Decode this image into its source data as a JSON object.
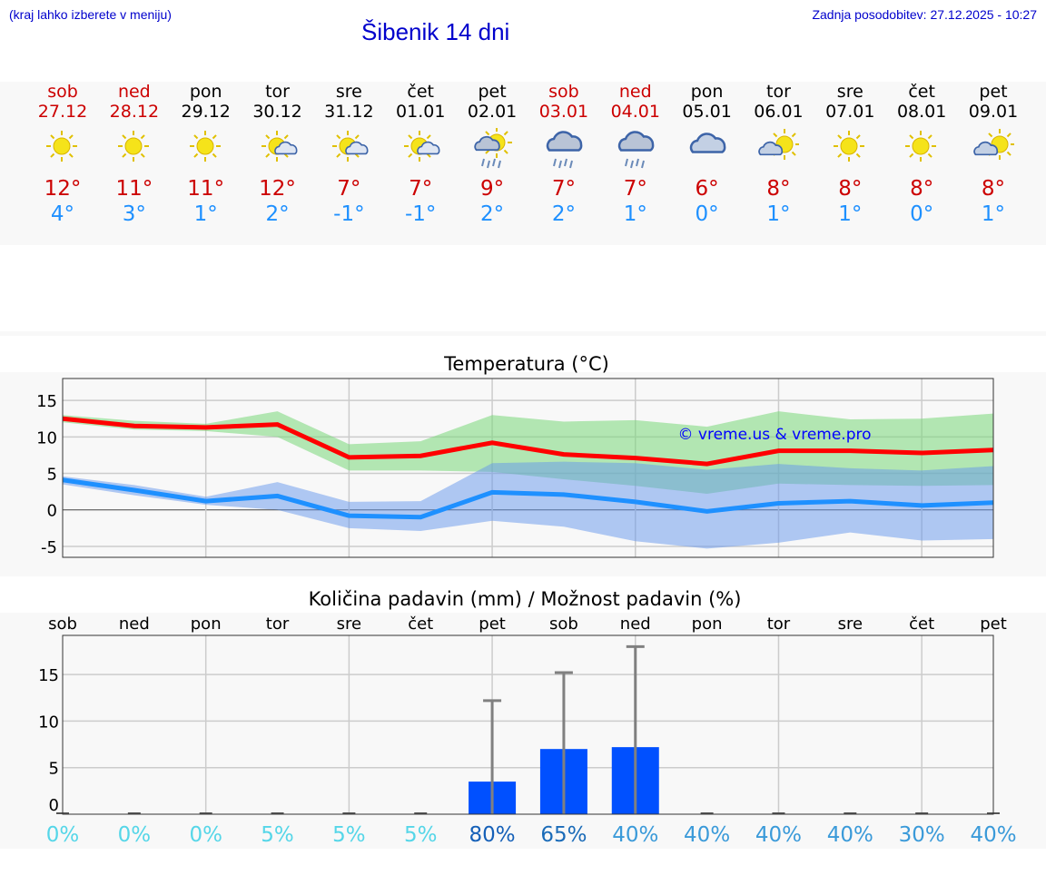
{
  "header": {
    "hint": "(kraj lahko izberete v meniju)",
    "title": "Šibenik 14 dni",
    "updated": "Zadnja posodobitev: 27.12.2025 - 10:27"
  },
  "days": [
    {
      "name": "sob",
      "date": "27.12",
      "weekend": true,
      "icon": "sun-icon",
      "max": "12°",
      "min": "4°"
    },
    {
      "name": "ned",
      "date": "28.12",
      "weekend": true,
      "icon": "sun-icon",
      "max": "11°",
      "min": "3°"
    },
    {
      "name": "pon",
      "date": "29.12",
      "weekend": false,
      "icon": "sun-icon",
      "max": "11°",
      "min": "1°"
    },
    {
      "name": "tor",
      "date": "30.12",
      "weekend": false,
      "icon": "sun-cloud-icon",
      "max": "12°",
      "min": "2°"
    },
    {
      "name": "sre",
      "date": "31.12",
      "weekend": false,
      "icon": "sun-cloud-icon",
      "max": "7°",
      "min": "-1°"
    },
    {
      "name": "čet",
      "date": "01.01",
      "weekend": false,
      "icon": "sun-cloud-icon",
      "max": "7°",
      "min": "-1°"
    },
    {
      "name": "pet",
      "date": "02.01",
      "weekend": false,
      "icon": "sun-cloud-rain-icon",
      "max": "9°",
      "min": "2°"
    },
    {
      "name": "sob",
      "date": "03.01",
      "weekend": true,
      "icon": "cloud-rain-icon",
      "max": "7°",
      "min": "2°"
    },
    {
      "name": "ned",
      "date": "04.01",
      "weekend": true,
      "icon": "cloud-rain-icon",
      "max": "7°",
      "min": "1°"
    },
    {
      "name": "pon",
      "date": "05.01",
      "weekend": false,
      "icon": "cloud-icon",
      "max": "6°",
      "min": "0°"
    },
    {
      "name": "tor",
      "date": "06.01",
      "weekend": false,
      "icon": "cloud-sun-icon",
      "max": "8°",
      "min": "1°"
    },
    {
      "name": "sre",
      "date": "07.01",
      "weekend": false,
      "icon": "sun-icon",
      "max": "8°",
      "min": "1°"
    },
    {
      "name": "čet",
      "date": "08.01",
      "weekend": false,
      "icon": "sun-icon",
      "max": "8°",
      "min": "0°"
    },
    {
      "name": "pet",
      "date": "09.01",
      "weekend": false,
      "icon": "cloud-sun-icon",
      "max": "8°",
      "min": "1°"
    }
  ],
  "chart_data": [
    {
      "type": "line",
      "title": "Temperatura (°C)",
      "ylim": [
        -6.5,
        18
      ],
      "yticks": [
        -5,
        0,
        5,
        10,
        15
      ],
      "watermark": "© vreme.us & vreme.pro",
      "series": [
        {
          "name": "max",
          "color": "#ff0000",
          "values": [
            12.5,
            11.5,
            11.3,
            11.7,
            7.2,
            7.4,
            9.2,
            7.6,
            7.1,
            6.3,
            8.1,
            8.1,
            7.8,
            8.2
          ],
          "band_upper": [
            13,
            12.2,
            11.8,
            13.5,
            9,
            9.4,
            13,
            12.1,
            12.3,
            11.4,
            13.5,
            12.4,
            12.5,
            13.2
          ],
          "band_lower": [
            12,
            11,
            10.8,
            10,
            5.4,
            5.4,
            5.2,
            4.2,
            3.3,
            2.2,
            3.6,
            3.4,
            3.3,
            3.4
          ]
        },
        {
          "name": "min",
          "color": "#1e90ff",
          "values": [
            4.1,
            2.7,
            1.2,
            1.9,
            -0.8,
            -1,
            2.4,
            2.1,
            1.1,
            -0.2,
            0.9,
            1.2,
            0.6,
            1
          ],
          "band_upper": [
            4.6,
            3.4,
            1.8,
            3.8,
            1.1,
            1.2,
            6.4,
            6.6,
            6.4,
            5.5,
            6.3,
            5.7,
            5.4,
            6
          ],
          "band_lower": [
            3.5,
            2,
            0.7,
            0,
            -2.5,
            -2.9,
            -1.5,
            -2.3,
            -4.3,
            -5.3,
            -4.5,
            -3.1,
            -4.2,
            -4
          ]
        }
      ]
    },
    {
      "type": "bar",
      "title": "Količina padavin (mm) / Možnost padavin (%)",
      "ylim": [
        0,
        19.2
      ],
      "yticks": [
        0,
        5,
        10,
        15
      ],
      "categories": [
        "sob",
        "ned",
        "pon",
        "tor",
        "sre",
        "čet",
        "pet",
        "sob",
        "ned",
        "pon",
        "tor",
        "sre",
        "čet",
        "pet"
      ],
      "values": [
        0,
        0,
        0,
        0,
        0,
        0,
        3.5,
        7,
        7.2,
        0,
        0,
        0,
        0,
        0
      ],
      "error_max": [
        0,
        0,
        0,
        0,
        0,
        0,
        12.2,
        15.2,
        18,
        0,
        0,
        0,
        0,
        0
      ],
      "probability": [
        "0%",
        "0%",
        "0%",
        "5%",
        "5%",
        "5%",
        "80%",
        "65%",
        "40%",
        "40%",
        "40%",
        "40%",
        "30%",
        "40%"
      ],
      "probability_colors": [
        "#55d6e8",
        "#55d6e8",
        "#55d6e8",
        "#55d6e8",
        "#55d6e8",
        "#55d6e8",
        "#1560b8",
        "#1a6bb8",
        "#3a9ad9",
        "#3a9ad9",
        "#3a9ad9",
        "#3a9ad9",
        "#3a9ad9",
        "#3a9ad9"
      ]
    }
  ]
}
